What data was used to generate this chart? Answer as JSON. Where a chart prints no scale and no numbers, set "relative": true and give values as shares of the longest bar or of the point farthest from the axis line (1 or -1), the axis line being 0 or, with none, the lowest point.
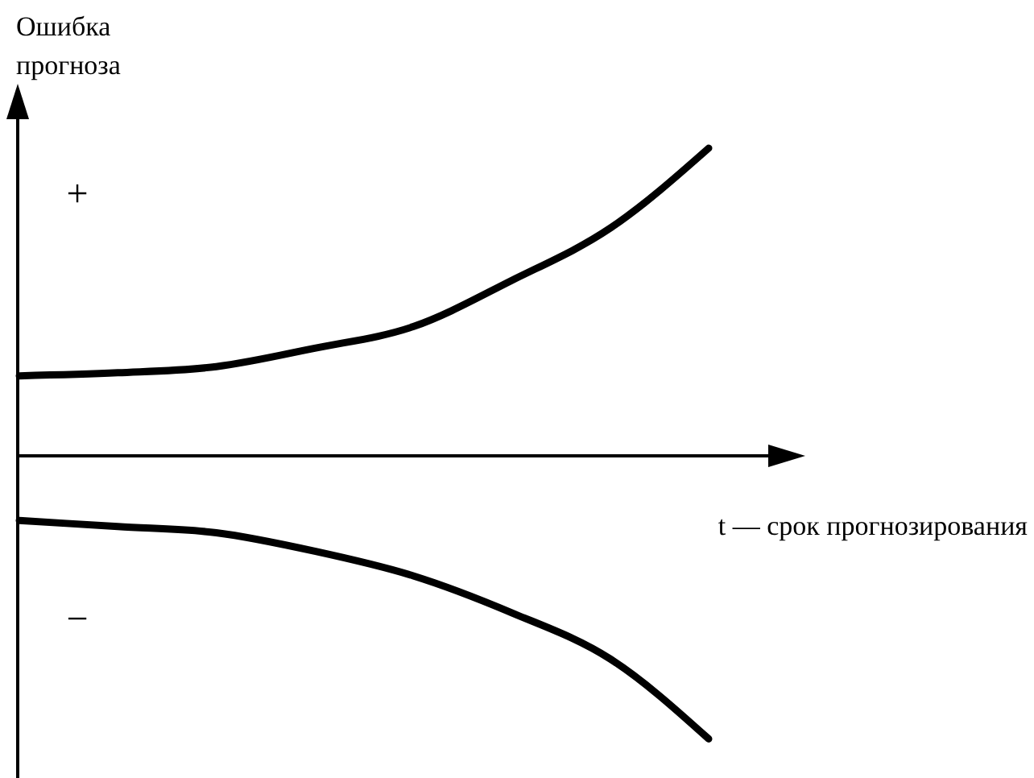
{
  "chart_data": {
    "type": "line",
    "relative": true,
    "ylabel": "Ошибка прогноза",
    "xlabel": "t — срок прогнозирования",
    "annotations": [
      "+",
      "−"
    ],
    "categories": [
      null,
      null,
      null,
      null,
      null,
      null,
      null,
      null
    ],
    "series": [
      {
        "color": "#000000",
        "values": [
          0.26,
          0.27,
          0.29,
          0.35,
          0.42,
          0.57,
          0.74,
          1
        ]
      },
      {
        "color": "#000000",
        "values": [
          -0.21,
          -0.23,
          -0.25,
          -0.31,
          -0.39,
          -0.51,
          -0.66,
          -0.92
        ]
      }
    ],
    "marker": "none",
    "line_style": "solid"
  }
}
